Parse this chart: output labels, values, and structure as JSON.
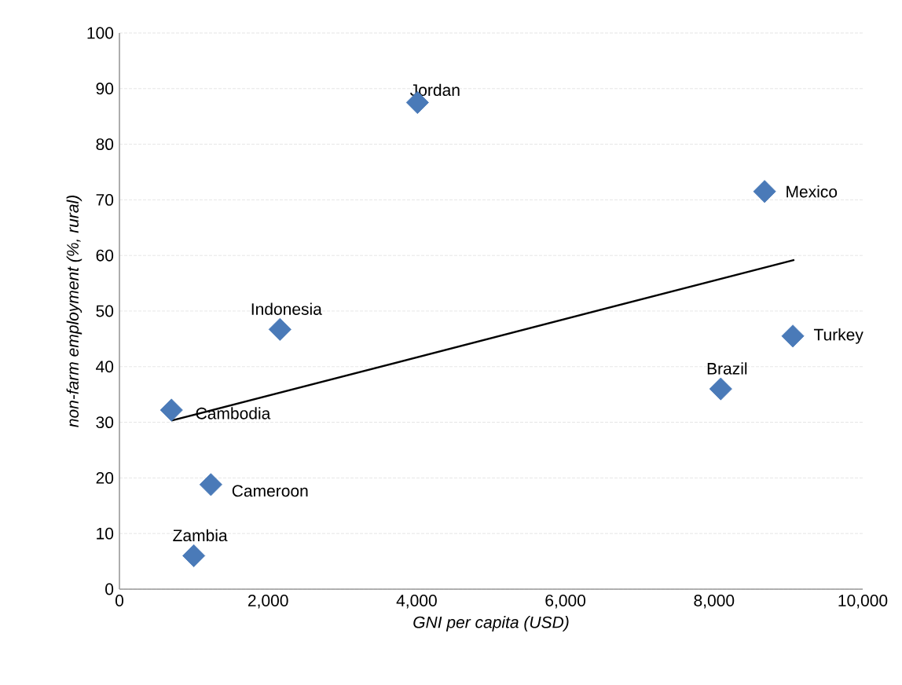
{
  "chart_data": {
    "type": "scatter",
    "xlabel": "GNI per capita (USD)",
    "ylabel": "non-farm employment (%, rural)",
    "xlim": [
      0,
      10000
    ],
    "ylim": [
      0,
      100
    ],
    "xticks": [
      0,
      {
        "value": 2000,
        "label": "2,000"
      },
      {
        "value": 4000,
        "label": "4,000"
      },
      {
        "value": 6000,
        "label": "6,000"
      },
      {
        "value": 8000,
        "label": "8,000"
      },
      {
        "value": 10000,
        "label": "10,000"
      }
    ],
    "yticks": [
      0,
      10,
      20,
      30,
      40,
      50,
      60,
      70,
      80,
      90,
      100
    ],
    "grid": "y",
    "series": [
      {
        "color": "#4a7ab8",
        "marker": "diamond",
        "x": [
          4010,
          8680,
          2160,
          9060,
          8090,
          700,
          1230,
          1000
        ],
        "values": [
          87.5,
          71.5,
          46.7,
          45.5,
          36,
          32.2,
          18.8,
          6
        ]
      },
      {
        "type": "line",
        "color": "#000000",
        "marker": "none",
        "line_style": "solid",
        "x": [
          700,
          9080
        ],
        "values": [
          30.3,
          59.2
        ]
      }
    ],
    "annotations": [
      {
        "text": "Jordan",
        "x": 4010,
        "y": 87.5
      },
      {
        "text": "Mexico",
        "x": 8680,
        "y": 71.5
      },
      {
        "text": "Indonesia",
        "x": 2160,
        "y": 46.7
      },
      {
        "text": "Turkey",
        "x": 9060,
        "y": 45.5
      },
      {
        "text": "Brazil",
        "x": 8090,
        "y": 36
      },
      {
        "text": "Cambodia",
        "x": 700,
        "y": 32.2
      },
      {
        "text": "Cameroon",
        "x": 1230,
        "y": 18.8
      },
      {
        "text": "Zambia",
        "x": 1000,
        "y": 6
      }
    ]
  }
}
